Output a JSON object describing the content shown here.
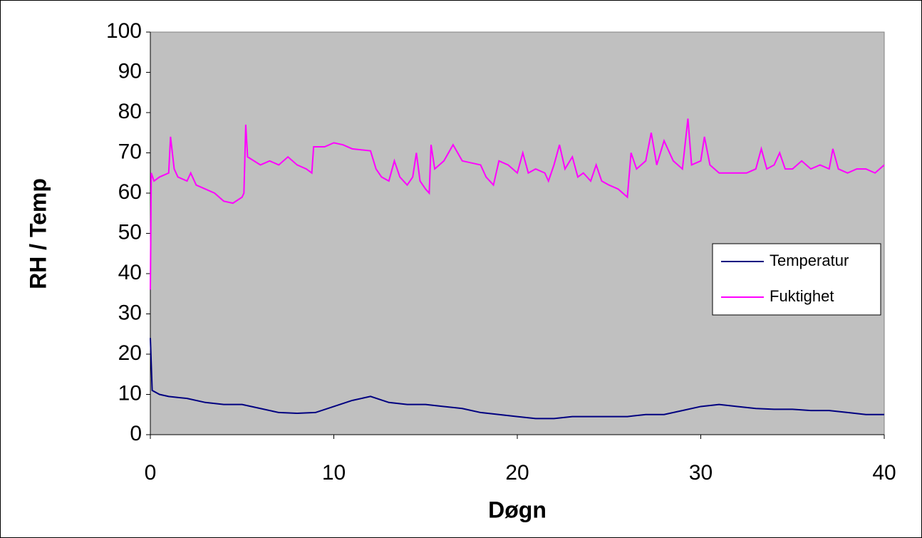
{
  "chart_data": {
    "type": "line",
    "xlabel": "Døgn",
    "ylabel": "RH / Temp",
    "xlim": [
      0,
      40
    ],
    "xticks": [
      0,
      10,
      20,
      30,
      40
    ],
    "ylim": [
      0,
      100
    ],
    "yticks": [
      0,
      10,
      20,
      30,
      40,
      50,
      60,
      70,
      80,
      90,
      100
    ],
    "legend": "right",
    "background": "#c0c0c0",
    "series": [
      {
        "name": "Temperatur",
        "color": "#000080",
        "x": [
          0,
          0.1,
          0.5,
          1,
          2,
          3,
          4,
          5,
          6,
          7,
          8,
          9,
          10,
          11,
          12,
          13,
          14,
          15,
          16,
          17,
          18,
          19,
          20,
          21,
          22,
          23,
          24,
          25,
          26,
          27,
          28,
          29,
          30,
          31,
          32,
          33,
          34,
          35,
          36,
          37,
          38,
          39,
          40
        ],
        "values": [
          24,
          11,
          10,
          9.5,
          9,
          8,
          7.5,
          7.5,
          6.5,
          5.5,
          5.3,
          5.5,
          7,
          8.5,
          9.5,
          8,
          7.5,
          7.5,
          7,
          6.5,
          5.5,
          5,
          4.5,
          4,
          4,
          4.5,
          4.5,
          4.5,
          4.5,
          5,
          5,
          6,
          7,
          7.5,
          7,
          6.5,
          6.3,
          6.3,
          6,
          6,
          5.5,
          5,
          5
        ]
      },
      {
        "name": "Fuktighet",
        "color": "#ff00ff",
        "x": [
          0,
          0.05,
          0.2,
          0.5,
          1,
          1.1,
          1.3,
          1.5,
          2,
          2.2,
          2.5,
          3,
          3.5,
          4,
          4.5,
          5,
          5.1,
          5.2,
          5.3,
          6,
          6.5,
          7,
          7.5,
          8,
          8.5,
          8.8,
          8.9,
          9.5,
          10,
          10.5,
          11,
          12,
          12.3,
          12.6,
          13,
          13.3,
          13.6,
          14,
          14.3,
          14.5,
          14.7,
          15,
          15.2,
          15.3,
          15.5,
          16,
          16.5,
          17,
          18,
          18.3,
          18.7,
          19,
          19.5,
          20,
          20.3,
          20.6,
          21,
          21.5,
          21.7,
          22,
          22.3,
          22.6,
          23,
          23.3,
          23.6,
          24,
          24.3,
          24.6,
          25,
          25.5,
          26,
          26.2,
          26.5,
          27,
          27.3,
          27.6,
          28,
          28.5,
          29,
          29.3,
          29.5,
          30,
          30.2,
          30.5,
          31,
          31.5,
          32,
          32.5,
          33,
          33.3,
          33.6,
          34,
          34.3,
          34.6,
          35,
          35.5,
          36,
          36.5,
          37,
          37.2,
          37.5,
          38,
          38.5,
          39,
          39.5,
          40
        ],
        "values": [
          36,
          65,
          63,
          64,
          65,
          74,
          66,
          64,
          63,
          65,
          62,
          61,
          60,
          58,
          57.5,
          59,
          60,
          77,
          69,
          67,
          68,
          67,
          69,
          67,
          66,
          65,
          71.5,
          71.5,
          72.5,
          72,
          71,
          70.5,
          66,
          64,
          63,
          68,
          64,
          62,
          64,
          70,
          63,
          61,
          60,
          72,
          66,
          68,
          72,
          68,
          67,
          64,
          62,
          68,
          67,
          65,
          70,
          65,
          66,
          65,
          63,
          67,
          72,
          66,
          69,
          64,
          65,
          63,
          67,
          63,
          62,
          61,
          59,
          70,
          66,
          68,
          75,
          67,
          73,
          68,
          66,
          78.5,
          67,
          68,
          74,
          67,
          65,
          65,
          65,
          65,
          66,
          71,
          66,
          67,
          70,
          66,
          66,
          68,
          66,
          67,
          66,
          71,
          66,
          65,
          66,
          66,
          65,
          67
        ]
      }
    ]
  }
}
